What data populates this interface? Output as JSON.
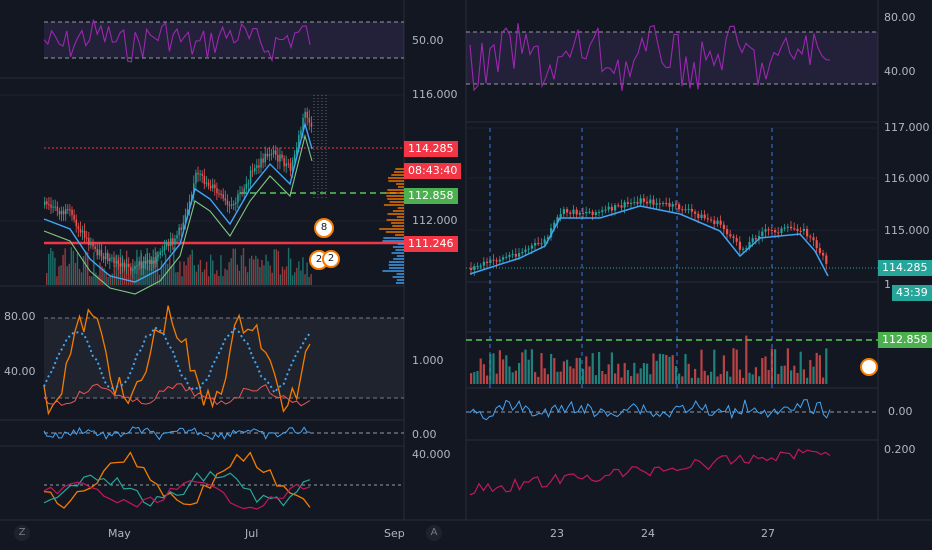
{
  "left_chart": {
    "rsi_axis": [
      "50.00"
    ],
    "price_axis": [
      "116.000",
      "112.000"
    ],
    "price_tag_current": "114.285",
    "countdown_tag": "08:43:40",
    "price_tag_green": "112.858",
    "price_tag_red": "111.246",
    "osc_axis_left": [
      "80.00",
      "40.00"
    ],
    "osc_axis_right": "1.000",
    "zero_axis": "0.00",
    "bottom_axis": "40.000",
    "time_axis": [
      "May",
      "Jul",
      "Sep"
    ],
    "badges": [
      "8",
      "2",
      "2"
    ],
    "corner_icon": "Z"
  },
  "right_chart": {
    "rsi_axis": [
      "80.00",
      "40.00"
    ],
    "price_axis": [
      "117.000",
      "116.000",
      "115.000"
    ],
    "price_tag_current": "114.285",
    "countdown_tag": "43:39",
    "price_tag_green": "112.858",
    "partial_label": "1",
    "zero_axis": "0.00",
    "bottom_axis": "0.200",
    "time_axis": [
      "23",
      "24",
      "27"
    ],
    "corner_icon": "A"
  },
  "colors": {
    "background": "#131722",
    "up": "#26a69a",
    "down": "#ef5350",
    "rsi": "#9c27b0",
    "orange": "#f57c00",
    "blue": "#42a5f5",
    "green_tag": "#4caf50",
    "red_tag": "#f23645",
    "crimson": "#c2185b"
  }
}
